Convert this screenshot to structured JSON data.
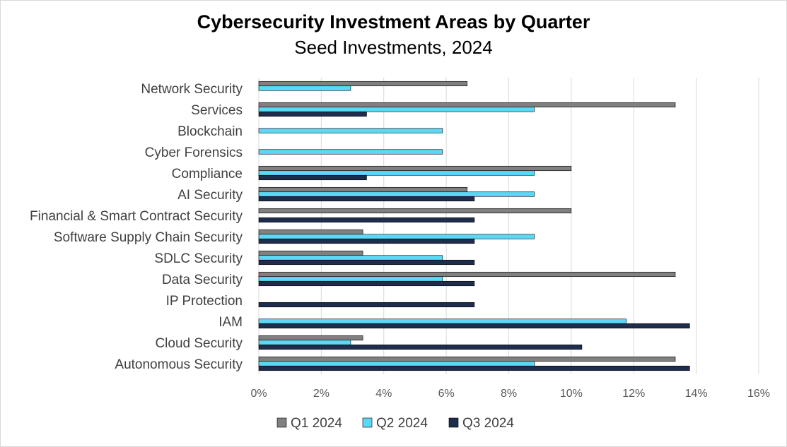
{
  "chart_data": {
    "type": "bar",
    "orientation": "horizontal",
    "title": "Cybersecurity Investment Areas by Quarter",
    "subtitle": "Seed Investments, 2024",
    "xlabel": "",
    "ylabel": "",
    "xlim": [
      0,
      16
    ],
    "x_ticks": [
      "0%",
      "2%",
      "4%",
      "6%",
      "8%",
      "10%",
      "12%",
      "14%",
      "16%"
    ],
    "grid": "vertical",
    "legend_position": "bottom",
    "categories": [
      "Network Security",
      "Services",
      "Blockchain",
      "Cyber Forensics",
      "Compliance",
      "AI Security",
      "Financial & Smart Contract Security",
      "Software Supply Chain Security",
      "SDLC Security",
      "Data Security",
      "IP Protection",
      "IAM",
      "Cloud Security",
      "Autonomous Security"
    ],
    "series": [
      {
        "name": "Q1 2024",
        "color": "#808080",
        "values": [
          6.67,
          13.33,
          0,
          0,
          10.0,
          6.67,
          10.0,
          3.33,
          3.33,
          13.33,
          0,
          0,
          3.33,
          13.33
        ]
      },
      {
        "name": "Q2 2024",
        "color": "#5bd8f5",
        "values": [
          2.94,
          8.82,
          5.88,
          5.88,
          8.82,
          8.82,
          0,
          8.82,
          5.88,
          5.88,
          0,
          11.76,
          2.94,
          8.82
        ]
      },
      {
        "name": "Q3 2024",
        "color": "#1f2d4d",
        "values": [
          0,
          3.45,
          0,
          0,
          3.45,
          6.9,
          6.9,
          6.9,
          6.9,
          6.9,
          6.9,
          13.79,
          10.34,
          13.79
        ]
      }
    ]
  }
}
